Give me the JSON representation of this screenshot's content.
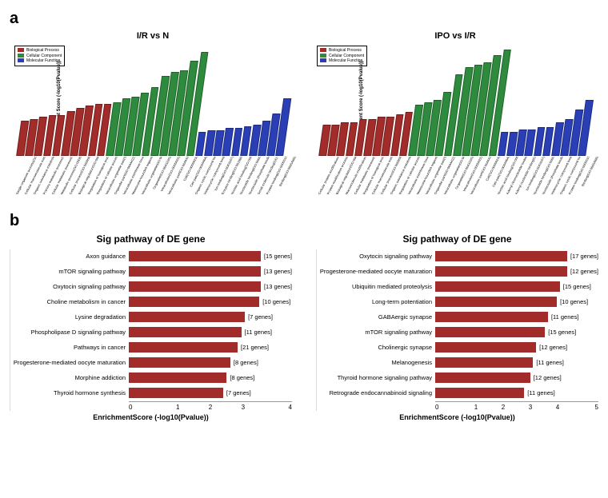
{
  "colors": {
    "bp": "#a22c2a",
    "cc": "#2e8b3d",
    "mf": "#2a3fb5",
    "bar_b": "#a22c2a"
  },
  "panel_a": {
    "label": "a",
    "legend": [
      "Biological Process",
      "Cellular Component",
      "Molecular Function"
    ],
    "ylabel": "Enrichment Score (-log10(Pvalue))",
    "left": {
      "title": "I/R vs N",
      "ymax": 60,
      "bars": [
        {
          "label": "Single-organism process(GO:0044699)",
          "v": 18,
          "g": "bp"
        },
        {
          "label": "Cellular macromolecule metabolic(GO:0044260)",
          "v": 19,
          "g": "bp"
        },
        {
          "label": "Organic substance metabolic(GO:0071704)",
          "v": 20,
          "g": "bp"
        },
        {
          "label": "Primary metabolic process(GO:0044238)",
          "v": 21,
          "g": "bp"
        },
        {
          "label": "Cellular metabolic process(GO:0044237)",
          "v": 21,
          "g": "bp"
        },
        {
          "label": "Metabolic process(GO:0008152)",
          "v": 23,
          "g": "bp"
        },
        {
          "label": "Cellular process(GO:0009987)",
          "v": 25,
          "g": "bp"
        },
        {
          "label": "Biological regulation(GO:0065007)",
          "v": 26,
          "g": "bp"
        },
        {
          "label": "Regulation of biological process(GO:0050789)",
          "v": 27,
          "g": "bp"
        },
        {
          "label": "Regulation of cellular process(GO:0050794)",
          "v": 27,
          "g": "bp"
        },
        {
          "label": "Intracellular organelle part(GO:0044446)",
          "v": 28,
          "g": "cc"
        },
        {
          "label": "Organelle part(GO:0044422)",
          "v": 30,
          "g": "cc"
        },
        {
          "label": "Intracellular membrane-bounded(GO:0043231)",
          "v": 31,
          "g": "cc"
        },
        {
          "label": "Membrane-bounded organelle(GO:0043227)",
          "v": 33,
          "g": "cc"
        },
        {
          "label": "Intracellular organelle(GO:0043229)",
          "v": 36,
          "g": "cc"
        },
        {
          "label": "Organelle(GO:0043226)",
          "v": 42,
          "g": "cc"
        },
        {
          "label": "Intracellular(GO:0005622)",
          "v": 44,
          "g": "cc"
        },
        {
          "label": "Intracellular part(GO:0044424)",
          "v": 45,
          "g": "cc"
        },
        {
          "label": "Cell(GO:0005623)",
          "v": 50,
          "g": "cc"
        },
        {
          "label": "Cell part(GO:0044464)",
          "v": 55,
          "g": "cc"
        },
        {
          "label": "Organic cyclic compound binding(GO:0097159)",
          "v": 12,
          "g": "mf"
        },
        {
          "label": "Heterocyclic compound binding(GO:1901363)",
          "v": 13,
          "g": "mf"
        },
        {
          "label": "Ion binding(GO:0043167)",
          "v": 13,
          "g": "mf"
        },
        {
          "label": "Enzyme binding(GO:0019899)",
          "v": 14,
          "g": "mf"
        },
        {
          "label": "Nucleic acid binding(GO:0003676)",
          "v": 14,
          "g": "mf"
        },
        {
          "label": "Nucleotide binding(GO:0000166)",
          "v": 15,
          "g": "mf"
        },
        {
          "label": "Nucleoside phosphate binding(GO:1901265)",
          "v": 16,
          "g": "mf"
        },
        {
          "label": "Small molecule binding(GO:0036094)",
          "v": 18,
          "g": "mf"
        },
        {
          "label": "Protein binding(GO:0005515)",
          "v": 22,
          "g": "mf"
        },
        {
          "label": "Binding(GO:0005488)",
          "v": 30,
          "g": "mf"
        }
      ]
    },
    "right": {
      "title": "IPO vs I/R",
      "ymax": 45,
      "bars": [
        {
          "label": "Cellular protein modification(GO:0006464)",
          "v": 12,
          "g": "bp"
        },
        {
          "label": "Protein modification process(GO:0036211)",
          "v": 12,
          "g": "bp"
        },
        {
          "label": "Biological regulation(GO:0065007)",
          "v": 13,
          "g": "bp"
        },
        {
          "label": "Macromolecule modification(GO:0043412)",
          "v": 13,
          "g": "bp"
        },
        {
          "label": "Cellular metabolic process(GO:0044237)",
          "v": 14,
          "g": "bp"
        },
        {
          "label": "Regulation of biological process(GO:0050789)",
          "v": 14,
          "g": "bp"
        },
        {
          "label": "Cellular macromolecule metabolic(GO:0044260)",
          "v": 15,
          "g": "bp"
        },
        {
          "label": "Cellular process(GO:0009987)",
          "v": 15,
          "g": "bp"
        },
        {
          "label": "Organic substance metabolic(GO:0071704)",
          "v": 16,
          "g": "bp"
        },
        {
          "label": "Regulation of cellular process(GO:0050794)",
          "v": 17,
          "g": "bp"
        },
        {
          "label": "Intracellular membrane-bounded(GO:0043231)",
          "v": 20,
          "g": "cc"
        },
        {
          "label": "Membrane-bounded organelle(GO:0043227)",
          "v": 21,
          "g": "cc"
        },
        {
          "label": "Intracellular organelle part(GO:0044446)",
          "v": 22,
          "g": "cc"
        },
        {
          "label": "Organelle part(GO:0044422)",
          "v": 25,
          "g": "cc"
        },
        {
          "label": "Intracellular organelle(GO:0043229)",
          "v": 32,
          "g": "cc"
        },
        {
          "label": "Organelle(GO:0043226)",
          "v": 35,
          "g": "cc"
        },
        {
          "label": "Intracellular(GO:0005622)",
          "v": 36,
          "g": "cc"
        },
        {
          "label": "Intracellular part(GO:0044424)",
          "v": 37,
          "g": "cc"
        },
        {
          "label": "Cell(GO:0005623)",
          "v": 40,
          "g": "cc"
        },
        {
          "label": "Cell part(GO:0044464)",
          "v": 42,
          "g": "cc"
        },
        {
          "label": "Nucleic acid binding(GO:0003676)",
          "v": 9,
          "g": "mf"
        },
        {
          "label": "Adenyl ribonucleotide binding(GO:0032559)",
          "v": 9,
          "g": "mf"
        },
        {
          "label": "Adenyl nucleotide binding(GO:0030554)",
          "v": 10,
          "g": "mf"
        },
        {
          "label": "Ion binding(GO:0043167)",
          "v": 10,
          "g": "mf"
        },
        {
          "label": "Nucleotide binding(GO:0000166)",
          "v": 11,
          "g": "mf"
        },
        {
          "label": "Nucleoside phosphate binding(GO:1901265)",
          "v": 11,
          "g": "mf"
        },
        {
          "label": "Heterocyclic compound binding(GO:1901363)",
          "v": 13,
          "g": "mf"
        },
        {
          "label": "Organic cyclic compound binding(GO:0097159)",
          "v": 14,
          "g": "mf"
        },
        {
          "label": "Protein binding(GO:0005515)",
          "v": 18,
          "g": "mf"
        },
        {
          "label": "Binding(GO:0005488)",
          "v": 22,
          "g": "mf"
        }
      ]
    }
  },
  "panel_b": {
    "label": "b",
    "title": "Sig pathway of DE gene",
    "xlabel": "EnrichmentScore (-log10(Pvalue))",
    "left": {
      "xmax": 4.5,
      "xticks": [
        0,
        1,
        2,
        3,
        4
      ],
      "rows": [
        {
          "label": "Axon guidance",
          "v": 4.3,
          "n": 15
        },
        {
          "label": "mTOR signaling pathway",
          "v": 4.0,
          "n": 13
        },
        {
          "label": "Oxytocin signaling pathway",
          "v": 3.8,
          "n": 13
        },
        {
          "label": "Choline metabolism in cancer",
          "v": 3.6,
          "n": 10
        },
        {
          "label": "Lysine degradation",
          "v": 3.2,
          "n": 7
        },
        {
          "label": "Phospholipase D signaling pathway",
          "v": 3.1,
          "n": 11
        },
        {
          "label": "Pathways in cancer",
          "v": 3.0,
          "n": 21
        },
        {
          "label": "Progesterone-mediated oocyte maturation",
          "v": 2.8,
          "n": 8
        },
        {
          "label": "Morphine addiction",
          "v": 2.7,
          "n": 8
        },
        {
          "label": "Thyroid hormone synthesis",
          "v": 2.6,
          "n": 7
        }
      ]
    },
    "right": {
      "xmax": 5.5,
      "xticks": [
        0,
        1,
        2,
        3,
        4,
        5
      ],
      "rows": [
        {
          "label": "Oxytocin signaling pathway",
          "v": 5.0,
          "n": 17
        },
        {
          "label": "Progesterone-mediated oocyte maturation",
          "v": 4.5,
          "n": 12
        },
        {
          "label": "Ubiquitin mediated proteolysis",
          "v": 4.2,
          "n": 15
        },
        {
          "label": "Long-term potentiation",
          "v": 4.1,
          "n": 10
        },
        {
          "label": "GABAergic synapse",
          "v": 3.8,
          "n": 11
        },
        {
          "label": "mTOR signaling pathway",
          "v": 3.7,
          "n": 15
        },
        {
          "label": "Cholinergic synapse",
          "v": 3.4,
          "n": 12
        },
        {
          "label": "Melanogenesis",
          "v": 3.3,
          "n": 11
        },
        {
          "label": "Thyroid hormone signaling pathway",
          "v": 3.2,
          "n": 12
        },
        {
          "label": "Retrograde endocannabinoid signaling",
          "v": 3.0,
          "n": 11
        }
      ]
    }
  }
}
